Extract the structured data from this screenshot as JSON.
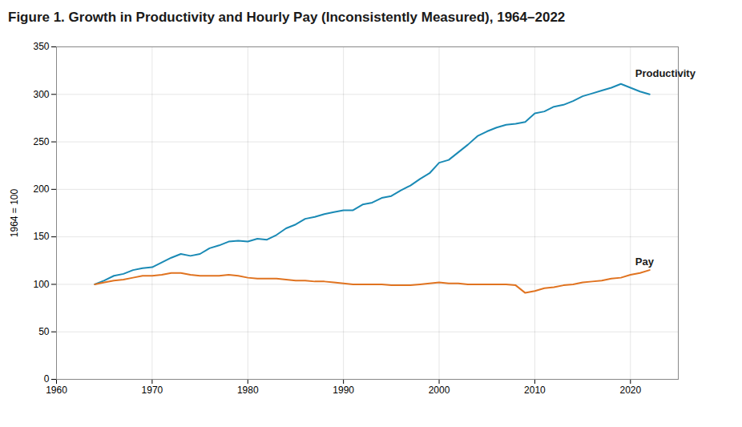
{
  "chart_data": {
    "type": "line",
    "title": "Figure 1. Growth in Productivity and Hourly Pay (Inconsistently Measured), 1964–2022",
    "ylabel": "1964 = 100",
    "x": [
      1964,
      1965,
      1966,
      1967,
      1968,
      1969,
      1970,
      1971,
      1972,
      1973,
      1974,
      1975,
      1976,
      1977,
      1978,
      1979,
      1980,
      1981,
      1982,
      1983,
      1984,
      1985,
      1986,
      1987,
      1988,
      1989,
      1990,
      1991,
      1992,
      1993,
      1994,
      1995,
      1996,
      1997,
      1998,
      1999,
      2000,
      2001,
      2002,
      2003,
      2004,
      2005,
      2006,
      2007,
      2008,
      2009,
      2010,
      2011,
      2012,
      2013,
      2014,
      2015,
      2016,
      2017,
      2018,
      2019,
      2020,
      2021,
      2022
    ],
    "series": [
      {
        "name": "Productivity",
        "color": "#1a8ab5",
        "values": [
          100,
          104,
          109,
          111,
          115,
          117,
          118,
          123,
          128,
          132,
          130,
          132,
          138,
          141,
          145,
          146,
          145,
          148,
          147,
          152,
          159,
          163,
          169,
          171,
          174,
          176,
          178,
          178,
          184,
          186,
          191,
          193,
          199,
          204,
          211,
          217,
          228,
          231,
          239,
          247,
          256,
          261,
          265,
          268,
          269,
          271,
          280,
          282,
          287,
          289,
          293,
          298,
          301,
          304,
          307,
          311,
          307,
          303,
          300
        ]
      },
      {
        "name": "Pay",
        "color": "#e07320",
        "values": [
          100,
          102,
          104,
          105,
          107,
          109,
          109,
          110,
          112,
          112,
          110,
          109,
          109,
          109,
          110,
          109,
          107,
          106,
          106,
          106,
          105,
          104,
          104,
          103,
          103,
          102,
          101,
          100,
          100,
          100,
          100,
          99,
          99,
          99,
          100,
          101,
          102,
          101,
          101,
          100,
          100,
          100,
          100,
          100,
          99,
          91,
          93,
          96,
          97,
          99,
          100,
          102,
          103,
          104,
          106,
          107,
          110,
          112,
          115
        ]
      }
    ],
    "annotations": [
      {
        "text": "Productivity",
        "x": 2020.5,
        "y": 318
      },
      {
        "text": "Pay",
        "x": 2020.5,
        "y": 120
      }
    ],
    "xlim": [
      1960,
      2025
    ],
    "xticks": [
      1960,
      1970,
      1980,
      1990,
      2000,
      2010,
      2020
    ],
    "ylim": [
      0,
      350
    ],
    "yticks": [
      0,
      50,
      100,
      150,
      200,
      250,
      300,
      350
    ],
    "grid": true
  }
}
